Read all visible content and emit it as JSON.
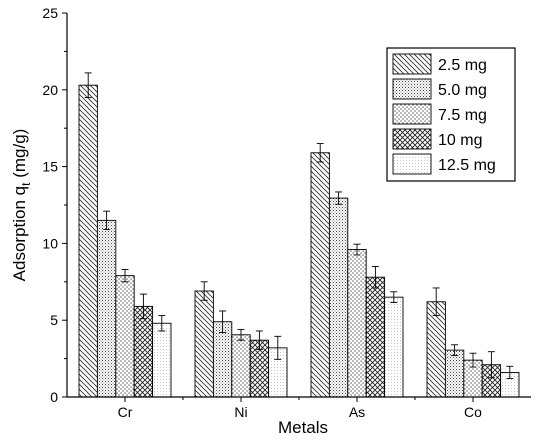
{
  "chart_data": {
    "type": "bar",
    "xlabel": "Metals",
    "ylabel": "Adsorption q",
    "ylabel_subscript": "t",
    "ylabel_unit": " (mg/g)",
    "ylim": [
      0,
      25
    ],
    "yticks": [
      0,
      5,
      10,
      15,
      20,
      25
    ],
    "grid": false,
    "legend_position": "top-right",
    "categories": [
      "Cr",
      "Ni",
      "As",
      "Co"
    ],
    "series": [
      {
        "name": "2.5 mg",
        "pattern": "diag-down",
        "values": [
          20.3,
          6.9,
          15.9,
          6.2
        ],
        "errors": [
          0.8,
          0.6,
          0.6,
          0.9
        ]
      },
      {
        "name": "5.0 mg",
        "pattern": "dots-dense",
        "values": [
          11.5,
          4.9,
          12.95,
          3.05
        ],
        "errors": [
          0.6,
          0.7,
          0.4,
          0.35
        ]
      },
      {
        "name": "7.5 mg",
        "pattern": "dots-sparse",
        "values": [
          7.9,
          4.05,
          9.6,
          2.4
        ],
        "errors": [
          0.4,
          0.35,
          0.35,
          0.45
        ]
      },
      {
        "name": "10 mg",
        "pattern": "crosshatch",
        "values": [
          5.9,
          3.7,
          7.8,
          2.1
        ],
        "errors": [
          0.8,
          0.6,
          0.7,
          0.85
        ]
      },
      {
        "name": "12.5 mg",
        "pattern": "fine-dots",
        "values": [
          4.8,
          3.2,
          6.5,
          1.6
        ],
        "errors": [
          0.5,
          0.75,
          0.35,
          0.4
        ]
      }
    ]
  }
}
